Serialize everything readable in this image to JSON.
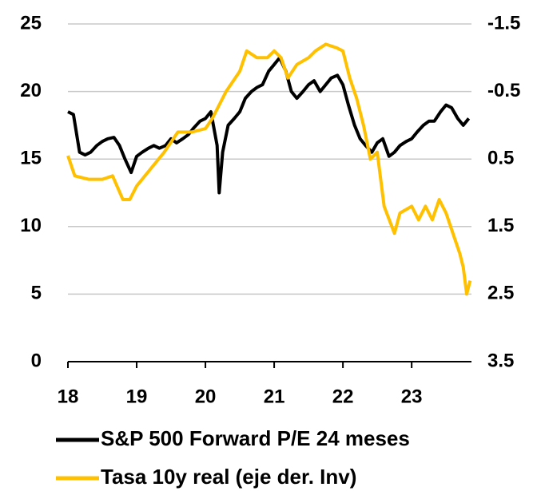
{
  "chart_data": {
    "type": "line",
    "xlim": [
      18,
      23.87
    ],
    "xticks": [
      18,
      19,
      20,
      21,
      22,
      23
    ],
    "ylim": [
      0,
      25
    ],
    "yticks": [
      0,
      5,
      10,
      15,
      20,
      25
    ],
    "y2lim": [
      3.5,
      -1.5
    ],
    "y2ticks": [
      3.5,
      2.5,
      1.5,
      0.5,
      -0.5,
      -1.5
    ],
    "grid": true,
    "series": [
      {
        "name": "S&P 500 Forward P/E 24 meses",
        "color": "#000000",
        "x": [
          18.0,
          18.08,
          18.17,
          18.25,
          18.33,
          18.42,
          18.5,
          18.58,
          18.67,
          18.75,
          18.83,
          18.92,
          19.0,
          19.08,
          19.17,
          19.25,
          19.33,
          19.42,
          19.5,
          19.58,
          19.67,
          19.75,
          19.83,
          19.92,
          20.0,
          20.08,
          20.17,
          20.2,
          20.25,
          20.33,
          20.42,
          20.5,
          20.58,
          20.67,
          20.75,
          20.83,
          20.92,
          21.0,
          21.08,
          21.17,
          21.25,
          21.33,
          21.42,
          21.5,
          21.58,
          21.67,
          21.75,
          21.83,
          21.92,
          22.0,
          22.08,
          22.17,
          22.25,
          22.33,
          22.42,
          22.5,
          22.58,
          22.67,
          22.75,
          22.83,
          22.92,
          23.0,
          23.08,
          23.17,
          23.25,
          23.33,
          23.42,
          23.5,
          23.58,
          23.67,
          23.75,
          23.83
        ],
        "values": [
          18.5,
          18.3,
          15.5,
          15.3,
          15.5,
          16.0,
          16.3,
          16.5,
          16.6,
          16.0,
          15.0,
          14.0,
          15.2,
          15.5,
          15.8,
          16.0,
          15.8,
          16.0,
          16.5,
          16.2,
          16.5,
          16.8,
          17.3,
          17.8,
          18.0,
          18.5,
          16.0,
          12.5,
          15.5,
          17.5,
          18.0,
          18.5,
          19.5,
          20.0,
          20.3,
          20.5,
          21.5,
          22.0,
          22.5,
          21.5,
          20.0,
          19.5,
          20.0,
          20.5,
          20.8,
          20.0,
          20.5,
          21.0,
          21.2,
          20.5,
          19.0,
          17.5,
          16.5,
          16.0,
          15.5,
          16.2,
          16.5,
          15.2,
          15.5,
          16.0,
          16.3,
          16.5,
          17.0,
          17.5,
          17.8,
          17.8,
          18.5,
          19.0,
          18.8,
          18.0,
          17.5,
          18.0
        ]
      },
      {
        "name": "Tasa 10y real (eje der. Inv)",
        "color": "#ffc000",
        "axis": "y2",
        "x": [
          18.0,
          18.1,
          18.3,
          18.5,
          18.65,
          18.8,
          18.9,
          19.0,
          19.2,
          19.4,
          19.6,
          19.8,
          20.0,
          20.1,
          20.2,
          20.3,
          20.5,
          20.6,
          20.75,
          20.9,
          21.0,
          21.1,
          21.2,
          21.33,
          21.5,
          21.6,
          21.75,
          21.9,
          22.0,
          22.1,
          22.2,
          22.3,
          22.4,
          22.5,
          22.6,
          22.75,
          22.83,
          23.0,
          23.1,
          23.2,
          23.3,
          23.4,
          23.5,
          23.6,
          23.7,
          23.75,
          23.8,
          23.85
        ],
        "values": [
          0.45,
          0.75,
          0.8,
          0.8,
          0.75,
          1.1,
          1.1,
          0.9,
          0.65,
          0.4,
          0.1,
          0.1,
          0.05,
          -0.1,
          -0.3,
          -0.5,
          -0.8,
          -1.1,
          -1.0,
          -1.0,
          -1.1,
          -1.0,
          -0.7,
          -0.9,
          -1.0,
          -1.1,
          -1.2,
          -1.15,
          -1.1,
          -0.7,
          -0.4,
          0.0,
          0.5,
          0.4,
          1.2,
          1.6,
          1.3,
          1.2,
          1.4,
          1.2,
          1.4,
          1.1,
          1.3,
          1.6,
          1.9,
          2.1,
          2.5,
          2.3
        ]
      }
    ]
  }
}
